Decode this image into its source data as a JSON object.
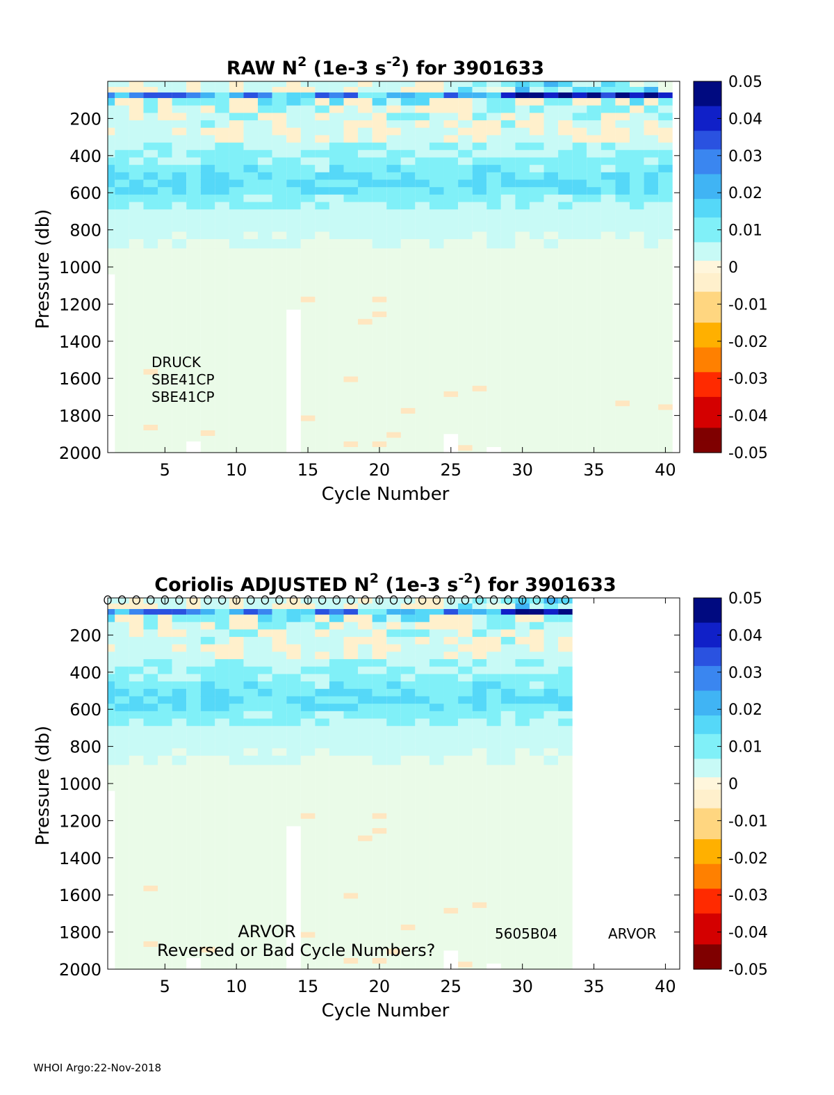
{
  "footer": "WHOI Argo:22-Nov-2018",
  "colormap": {
    "neg": [
      "#7f0000",
      "#d40000",
      "#ff2a00",
      "#ff8000",
      "#ffb000",
      "#ffd680",
      "#fff0cc"
    ],
    "zero": "#eafbe8",
    "pos": [
      "#c8faf6",
      "#80f0f8",
      "#55d8f8",
      "#40b4f4",
      "#3a86f0",
      "#2a52e0",
      "#1020c8",
      "#000a80"
    ]
  },
  "chart_data": [
    {
      "type": "heatmap",
      "title": "RAW N² (1e-3 s⁻²) for 3901633",
      "title_parts": {
        "a": "RAW N",
        "sup1": "2",
        "b": " (1e-3 s",
        "sup2": "-2",
        "c": ") for 3901633"
      },
      "xlabel": "Cycle Number",
      "ylabel": "Pressure (db)",
      "xlim": [
        1,
        41
      ],
      "ylim": [
        2000,
        0
      ],
      "xticks": [
        5,
        10,
        15,
        20,
        25,
        30,
        35,
        40
      ],
      "yticks": [
        200,
        400,
        600,
        800,
        1000,
        1200,
        1400,
        1600,
        1800,
        2000
      ],
      "cycles_with_data": [
        2,
        40
      ],
      "colorbar": {
        "min": -0.05,
        "max": 0.05,
        "ticks": [
          "0.05",
          "0.04",
          "0.03",
          "0.02",
          "0.01",
          "0",
          "-0.01",
          "-0.02",
          "-0.03",
          "-0.04",
          "-0.05"
        ]
      },
      "annotations": [
        "DRUCK",
        "SBE41CP",
        "SBE41CP"
      ]
    },
    {
      "type": "heatmap",
      "title": "Coriolis  ADJUSTED N² (1e-3 s⁻²) for 3901633",
      "title_parts": {
        "a": "Coriolis  ADJUSTED N",
        "sup1": "2",
        "b": " (1e-3 s",
        "sup2": "-2",
        "c": ") for 3901633"
      },
      "xlabel": "Cycle Number",
      "ylabel": "Pressure (db)",
      "xlim": [
        1,
        41
      ],
      "ylim": [
        2000,
        0
      ],
      "xticks": [
        5,
        10,
        15,
        20,
        25,
        30,
        35,
        40
      ],
      "yticks": [
        200,
        400,
        600,
        800,
        1000,
        1200,
        1400,
        1600,
        1800,
        2000
      ],
      "cycles_with_data": [
        2,
        33
      ],
      "colorbar": {
        "min": -0.05,
        "max": 0.05,
        "ticks": [
          "0.05",
          "0.04",
          "0.03",
          "0.02",
          "0.01",
          "0",
          "-0.01",
          "-0.02",
          "-0.03",
          "-0.04",
          "-0.05"
        ]
      },
      "marker": "o",
      "annotations": [
        {
          "text": "ARVOR",
          "cycle": 11,
          "pressure": 1800
        },
        {
          "text": "Reversed or Bad Cycle Numbers?",
          "cycle": 15,
          "pressure": 1900
        },
        {
          "text": "5605B04",
          "cycle": 31,
          "pressure": 1810
        },
        {
          "text": "ARVOR",
          "cycle": 38.8,
          "pressure": 1810
        }
      ]
    }
  ],
  "heatmap_profile": {
    "pressures": [
      20,
      60,
      100,
      150,
      200,
      260,
      320,
      380,
      440,
      500,
      560,
      620,
      680,
      740,
      800,
      880
    ],
    "values": [
      -0.002,
      0.035,
      0.012,
      0.006,
      0.005,
      0.004,
      0.004,
      0.006,
      0.009,
      0.012,
      0.013,
      0.009,
      0.005,
      0.003,
      0.002,
      0.001
    ]
  },
  "missing_cells": [
    {
      "cycle": 1,
      "from": 1040,
      "to": 2000
    },
    {
      "cycle": 14,
      "from": 1230,
      "to": 2000
    },
    {
      "cycle": 25,
      "from": 1900,
      "to": 2000
    },
    {
      "cycle": 7,
      "from": 1940,
      "to": 2000
    },
    {
      "cycle": 28,
      "from": 1970,
      "to": 2000
    }
  ]
}
